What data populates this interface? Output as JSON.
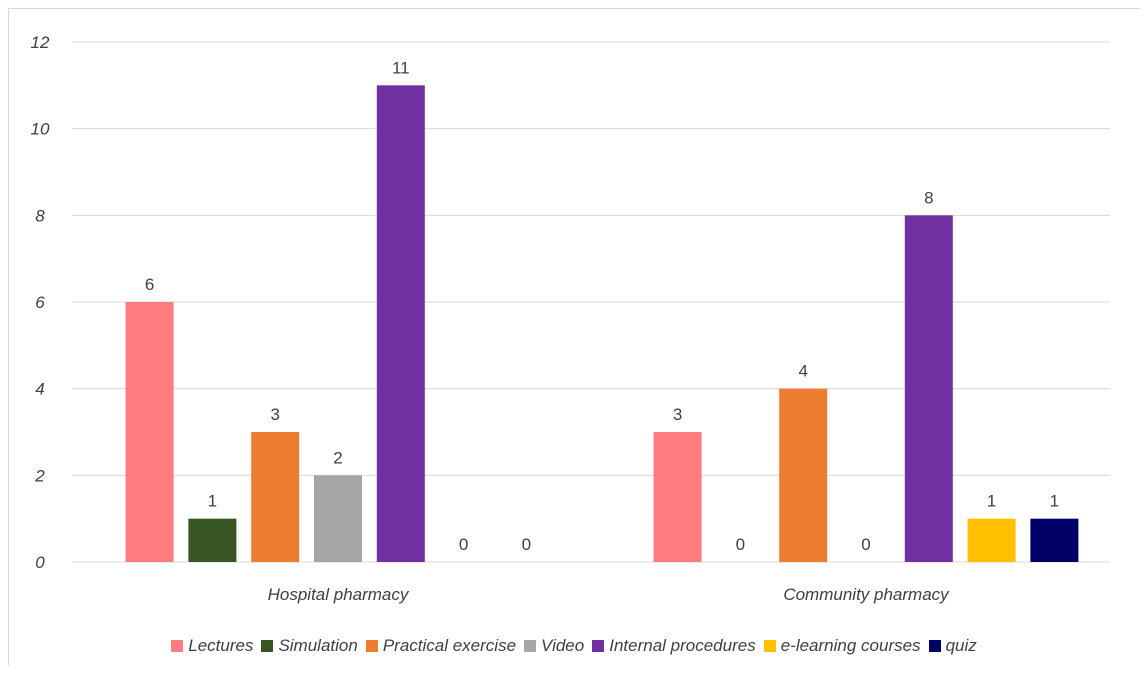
{
  "chart_data": {
    "type": "bar",
    "title": "",
    "xlabel": "",
    "ylabel": "",
    "categories": [
      "Hospital pharmacy",
      "Community pharmacy"
    ],
    "ylim": [
      0,
      12
    ],
    "yticks": [
      "0",
      "2",
      "4",
      "6",
      "8",
      "10",
      "12"
    ],
    "grid": true,
    "legend_position": "bottom",
    "series": [
      {
        "name": "Lectures",
        "color": "#ff7c80",
        "values": [
          6,
          3
        ]
      },
      {
        "name": "Simulation",
        "color": "#375623",
        "values": [
          1,
          0
        ]
      },
      {
        "name": "Practical exercise",
        "color": "#ed7d31",
        "values": [
          3,
          4
        ]
      },
      {
        "name": "Video",
        "color": "#a5a5a5",
        "values": [
          2,
          0
        ]
      },
      {
        "name": "Internal procedures",
        "color": "#7030a0",
        "values": [
          11,
          8
        ]
      },
      {
        "name": "e-learning courses",
        "color": "#ffc000",
        "values": [
          0,
          1
        ]
      },
      {
        "name": "quiz",
        "color": "#000066",
        "values": [
          0,
          1
        ]
      }
    ]
  }
}
